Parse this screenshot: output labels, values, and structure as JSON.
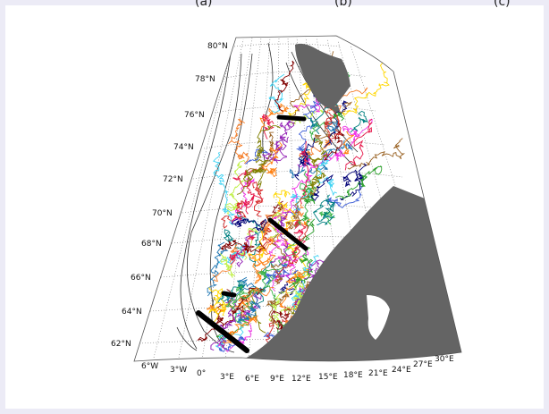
{
  "panel_labels": [
    "(a)",
    "(b)",
    "(c)"
  ],
  "map": {
    "latitude_labels": [
      "80°N",
      "78°N",
      "76°N",
      "74°N",
      "72°N",
      "70°N",
      "68°N",
      "66°N",
      "64°N",
      "62°N"
    ],
    "longitude_labels": [
      "6°W",
      "3°W",
      "0°",
      "3°E",
      "6°E",
      "9°E",
      "12°E",
      "15°E",
      "18°E",
      "21°E",
      "24°E",
      "27°E",
      "30°E"
    ],
    "land_color": "#646464",
    "ocean_color": "#ffffff",
    "section_line_color": "#000000",
    "bathymetry_contour_color": "#333333",
    "drifter_track_colors": [
      "#e6194b",
      "#3cb44b",
      "#4363d8",
      "#911eb4",
      "#f58231",
      "#42d4f4",
      "#f032e6",
      "#bfef45",
      "#800000",
      "#000075",
      "#808000",
      "#008080",
      "#ff7f0e",
      "#9a6324",
      "#2ca02c",
      "#1f77b4",
      "#d62728",
      "#ffd700"
    ],
    "icons": [
      "landmass-polygon",
      "section-line",
      "drifter-track",
      "bathymetry-contour"
    ]
  }
}
